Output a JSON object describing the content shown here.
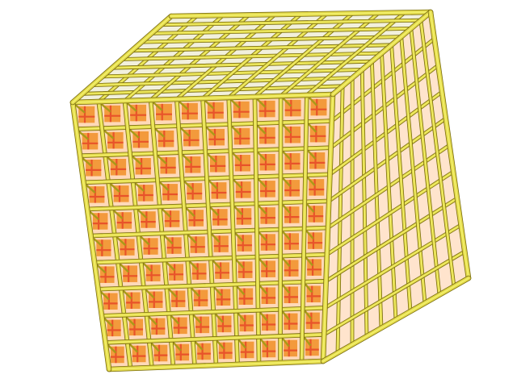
{
  "scene": {
    "subject": "lattice-cube",
    "grid_divisions": 10,
    "colors": {
      "background": "#ffffff",
      "rod_light": "#f2f06a",
      "rod_mid": "#e2d84a",
      "rod_dark": "#a89a18",
      "rod_outline": "#7a6e10",
      "interior_orange": "#f39a3c",
      "interior_red": "#e8532a",
      "interior_glow": "#ffd9b8"
    }
  }
}
